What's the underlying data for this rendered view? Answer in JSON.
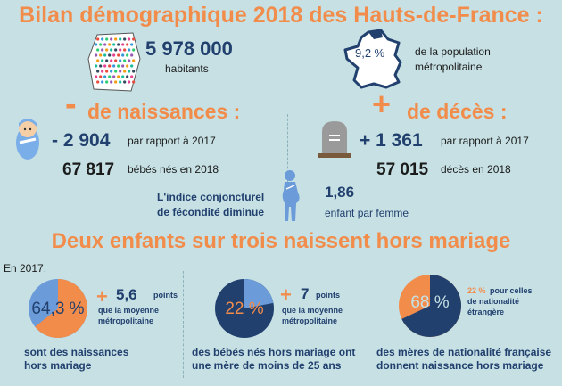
{
  "colors": {
    "accent": "#f28c4a",
    "navy": "#21406e",
    "blue": "#6b9bd8",
    "background": "#c6e0e4"
  },
  "title": "Bilan démographique 2018 des Hauts-de-France :",
  "population": {
    "value": "5 978 000",
    "unit": "habitants"
  },
  "share": {
    "value": "9,2 %",
    "line1": "de la population",
    "line2": "métropolitaine"
  },
  "births": {
    "sign": "-",
    "heading": "de naissances :",
    "diff": "- 2 904",
    "diff_text": "par rapport à 2017",
    "total": "67 817",
    "total_text": "bébés nés en 2018"
  },
  "deaths": {
    "sign": "+",
    "heading": "de décès :",
    "diff": "+ 1 361",
    "diff_text": "par rapport à 2017",
    "total": "57 015",
    "total_text": "décès en 2018"
  },
  "fertility": {
    "line1": "L'indice conjoncturel",
    "line2": "de fécondité diminue",
    "value": "1,86",
    "unit": "enfant par femme"
  },
  "subtitle": "Deux enfants sur trois naissent hors mariage",
  "year_label": "En 2017,",
  "cards": [
    {
      "pie_label": "64,3 %",
      "share": 0.643,
      "plus": "+",
      "value": "5,6",
      "points": "points",
      "line1": "que la moyenne",
      "line2": "métropolitaine",
      "caption1": "sont des naissances",
      "caption2": "hors mariage"
    },
    {
      "pie_label": "22 %",
      "share": 0.22,
      "plus": "+",
      "value": "7",
      "points": "points",
      "line1": "que la moyenne",
      "line2": "métropolitaine",
      "caption1": "des bébés nés hors mariage ont",
      "caption2": "une mère de moins de 25 ans"
    },
    {
      "pie_label": "68 %",
      "share": 0.68,
      "pct": "22 %",
      "line1": "pour celles",
      "line2": "de nationalité",
      "line3": "étrangère",
      "caption1": "des mères de nationalité française",
      "caption2": "donnent naissance hors mariage"
    }
  ],
  "icons": [
    "crowd-map-icon",
    "france-map-icon",
    "baby-icon",
    "tombstone-icon",
    "pregnant-woman-icon"
  ]
}
